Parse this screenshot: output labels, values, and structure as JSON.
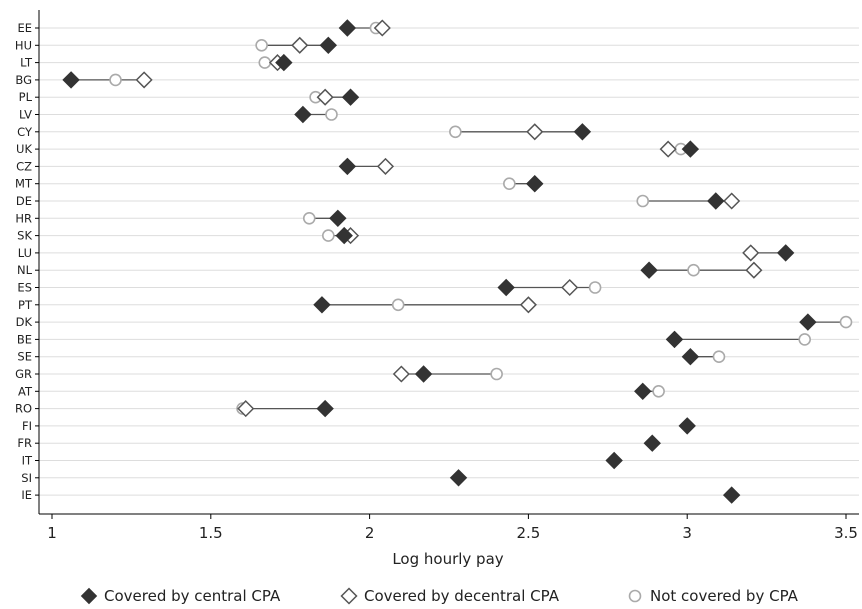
{
  "chart_data": {
    "type": "scatter",
    "title": "",
    "xlabel": "Log hourly pay",
    "ylabel": "",
    "xlim": [
      1,
      3.55
    ],
    "xticks": [
      1,
      1.5,
      2,
      2.5,
      3,
      3.5
    ],
    "xtick_labels": [
      "1",
      "1.5",
      "2",
      "2.5",
      "3",
      "3.5"
    ],
    "grid": "horizontal",
    "legend_position": "bottom",
    "colors": {
      "central": "#333333",
      "decentral": "#555555",
      "not_covered": "#aaaaaa",
      "connector": "#555555",
      "grid": "#dddddd"
    },
    "series": [
      {
        "key": "central",
        "name": "Covered by central CPA",
        "marker": "filled-diamond"
      },
      {
        "key": "decentral",
        "name": "Covered by decentral CPA",
        "marker": "hollow-diamond"
      },
      {
        "key": "not_covered",
        "name": "Not covered by CPA",
        "marker": "hollow-circle"
      }
    ],
    "countries": [
      {
        "label": "EE",
        "central": 1.93,
        "decentral": 2.04,
        "not_covered": 2.02
      },
      {
        "label": "HU",
        "central": 1.87,
        "decentral": 1.78,
        "not_covered": 1.66
      },
      {
        "label": "LT",
        "central": 1.73,
        "decentral": 1.71,
        "not_covered": 1.67
      },
      {
        "label": "BG",
        "central": 1.06,
        "decentral": 1.29,
        "not_covered": 1.2
      },
      {
        "label": "PL",
        "central": 1.94,
        "decentral": 1.86,
        "not_covered": 1.83
      },
      {
        "label": "LV",
        "central": 1.79,
        "decentral": null,
        "not_covered": 1.88
      },
      {
        "label": "CY",
        "central": 2.67,
        "decentral": 2.52,
        "not_covered": 2.27
      },
      {
        "label": "UK",
        "central": 3.01,
        "decentral": 2.94,
        "not_covered": 2.98
      },
      {
        "label": "CZ",
        "central": 1.93,
        "decentral": 2.05,
        "not_covered": 1.93
      },
      {
        "label": "MT",
        "central": 2.52,
        "decentral": 2.52,
        "not_covered": 2.44
      },
      {
        "label": "DE",
        "central": 3.09,
        "decentral": 3.14,
        "not_covered": 2.86
      },
      {
        "label": "HR",
        "central": 1.9,
        "decentral": null,
        "not_covered": 1.81
      },
      {
        "label": "SK",
        "central": 1.92,
        "decentral": 1.94,
        "not_covered": 1.87
      },
      {
        "label": "LU",
        "central": 3.31,
        "decentral": 3.2,
        "not_covered": 3.2
      },
      {
        "label": "NL",
        "central": 2.88,
        "decentral": 3.21,
        "not_covered": 3.02
      },
      {
        "label": "ES",
        "central": 2.43,
        "decentral": 2.63,
        "not_covered": 2.71
      },
      {
        "label": "PT",
        "central": 1.85,
        "decentral": 2.5,
        "not_covered": 2.09
      },
      {
        "label": "DK",
        "central": 3.38,
        "decentral": null,
        "not_covered": 3.5
      },
      {
        "label": "BE",
        "central": 2.96,
        "decentral": 2.96,
        "not_covered": 3.37
      },
      {
        "label": "SE",
        "central": 3.01,
        "decentral": null,
        "not_covered": 3.1
      },
      {
        "label": "GR",
        "central": 2.17,
        "decentral": 2.1,
        "not_covered": 2.4
      },
      {
        "label": "AT",
        "central": 2.86,
        "decentral": null,
        "not_covered": 2.91
      },
      {
        "label": "RO",
        "central": 1.86,
        "decentral": 1.61,
        "not_covered": 1.6
      },
      {
        "label": "FI",
        "central": 3.0,
        "decentral": null,
        "not_covered": null
      },
      {
        "label": "FR",
        "central": 2.89,
        "decentral": null,
        "not_covered": null
      },
      {
        "label": "IT",
        "central": 2.77,
        "decentral": null,
        "not_covered": null
      },
      {
        "label": "SI",
        "central": 2.28,
        "decentral": null,
        "not_covered": null
      },
      {
        "label": "IE",
        "central": 3.14,
        "decentral": null,
        "not_covered": null
      }
    ]
  }
}
